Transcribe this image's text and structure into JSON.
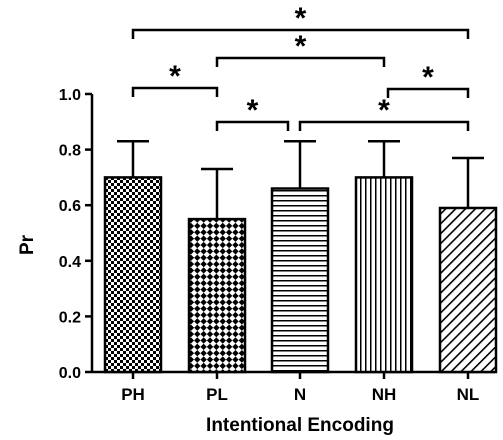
{
  "chart_data": {
    "type": "bar",
    "categories": [
      "PH",
      "PL",
      "N",
      "NH",
      "NL"
    ],
    "values": [
      0.7,
      0.55,
      0.66,
      0.7,
      0.59
    ],
    "error_upper": [
      0.83,
      0.73,
      0.83,
      0.83,
      0.77
    ],
    "patterns": [
      "checker-fine",
      "checker-coarse",
      "horizontal-lines",
      "vertical-lines",
      "diagonal-lines"
    ],
    "xlabel": "Intentional Encoding",
    "ylabel": "Pr",
    "ylim": [
      0,
      1.0
    ],
    "yticks": [
      "0.0",
      "0.2",
      "0.4",
      "0.6",
      "0.8",
      "1.0"
    ],
    "grid": false,
    "legend": "none",
    "significance": [
      {
        "from": "PH",
        "to": "NL",
        "label": "*"
      },
      {
        "from": "PL",
        "to": "NH",
        "label": "*"
      },
      {
        "from": "PH",
        "to": "PL",
        "label": "*"
      },
      {
        "from": "NH",
        "to": "NL",
        "label": "*"
      },
      {
        "from": "PL",
        "to": "N",
        "label": "*"
      },
      {
        "from": "N",
        "to": "NL",
        "label": "*"
      }
    ],
    "colors": {
      "bar_stroke": "#000000",
      "background": "#ffffff"
    }
  }
}
